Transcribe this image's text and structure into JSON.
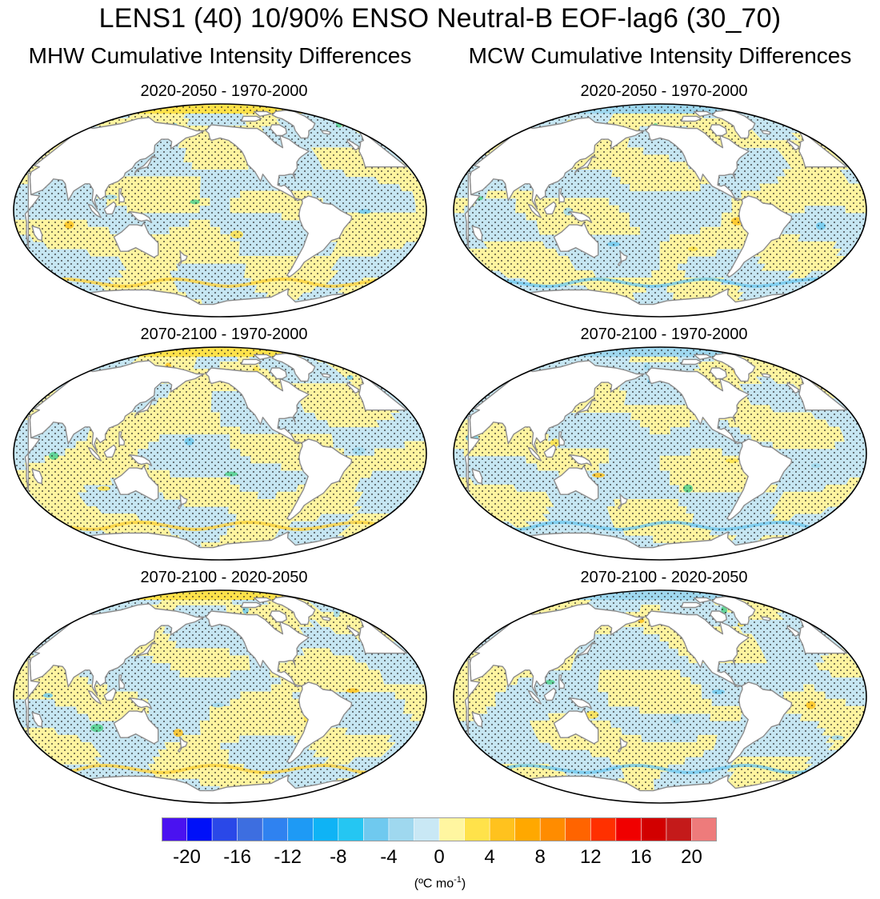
{
  "title": "LENS1 (40) 10/90% ENSO Neutral-B EOF-lag6 (30_70)",
  "columns": {
    "left": "MHW Cumulative Intensity Differences",
    "right": "MCW Cumulative Intensity Differences"
  },
  "panels": [
    {
      "col": "left",
      "label": "2020-2050 - 1970-2000"
    },
    {
      "col": "right",
      "label": "2020-2050 - 1970-2000"
    },
    {
      "col": "left",
      "label": "2070-2100 - 1970-2000"
    },
    {
      "col": "right",
      "label": "2070-2100 - 1970-2000"
    },
    {
      "col": "left",
      "label": "2070-2100 - 2020-2050"
    },
    {
      "col": "right",
      "label": "2070-2100 - 2020-2050"
    }
  ],
  "colorbar": {
    "colors": [
      "#4a12f0",
      "#0010f8",
      "#2a48e8",
      "#3d6ee0",
      "#2f82f0",
      "#1e9af5",
      "#0fb3f5",
      "#25c6f2",
      "#6fc9ef",
      "#9fd8ef",
      "#c9e8f5",
      "#fff6a0",
      "#ffe24a",
      "#ffc21e",
      "#ffa800",
      "#ff8c00",
      "#ff6400",
      "#ff3000",
      "#f00000",
      "#d20000",
      "#c41a1a",
      "#ee7b7b"
    ],
    "tick_labels": [
      "-20",
      "-16",
      "-12",
      "-8",
      "-4",
      "0",
      "4",
      "8",
      "12",
      "16",
      "20"
    ],
    "units_prefix": "(",
    "units_main": "ºC mo",
    "units_sup": "-1",
    "units_suffix": ")"
  },
  "legend_colors": {
    "land": "#ffffff",
    "coast": "#8c8c8c",
    "positive": "#fff4a0",
    "negative": "#c6e6f2",
    "stipple": "#222222"
  }
}
